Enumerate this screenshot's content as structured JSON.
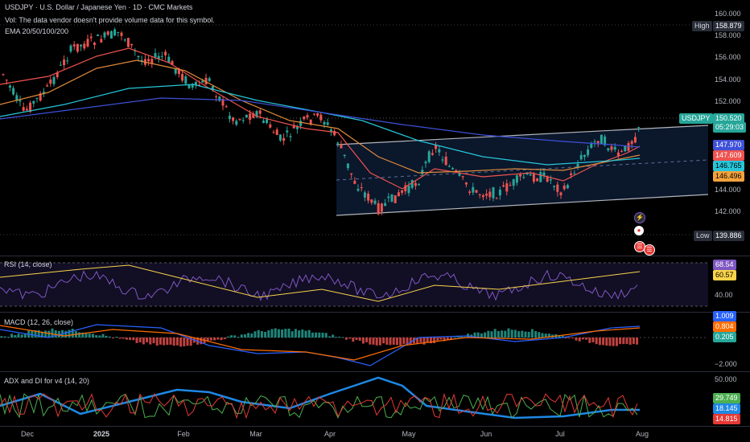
{
  "header": {
    "title": "USDJPY · U.S. Dollar / Japanese Yen · 1D · CMC Markets",
    "volume_note": "Vol: The data vendor doesn't provide volume data for this symbol.",
    "ema_label": "EMA 20/50/100/200"
  },
  "price_axis": {
    "ticks": [
      "160.000",
      "158.000",
      "156.000",
      "154.000",
      "152.000",
      "144.000",
      "142.000"
    ],
    "high_label": "High",
    "high_value": "158.879",
    "low_label": "Low",
    "low_value": "139.886",
    "symbol_tag": "USDJPY",
    "last_price": "150.520",
    "countdown": "05:29:03",
    "ema_values": [
      "147.970",
      "147.609",
      "146.765",
      "146.496"
    ]
  },
  "rsi": {
    "label": "RSI (14, close)",
    "values": [
      "68.54",
      "60.57"
    ],
    "tick": "40.00"
  },
  "macd": {
    "label": "MACD (12, 26, close)",
    "values": [
      "1.009",
      "0.804",
      "0.205"
    ],
    "tick": "−2.000"
  },
  "adx": {
    "label": "ADX and DI for v4 (14, 20)",
    "tick": "50.000",
    "values": [
      "29.749",
      "18.145",
      "14.815"
    ]
  },
  "time_axis": [
    "Dec",
    "2025",
    "Feb",
    "Mar",
    "Apr",
    "May",
    "Jun",
    "Jul",
    "Aug"
  ],
  "colors": {
    "up": "#26a69a",
    "down": "#ef5350",
    "ema20": "#ef5350",
    "ema50": "#e08a3c",
    "ema100": "#26c6da",
    "ema200": "#3f51d8",
    "high_tag_bg": "#3a3d48",
    "last_price_bg": "#26a69a"
  },
  "icons": [
    "lightning-icon",
    "red-event-icon",
    "us-flag-icon",
    "jp-flag-icon"
  ]
}
